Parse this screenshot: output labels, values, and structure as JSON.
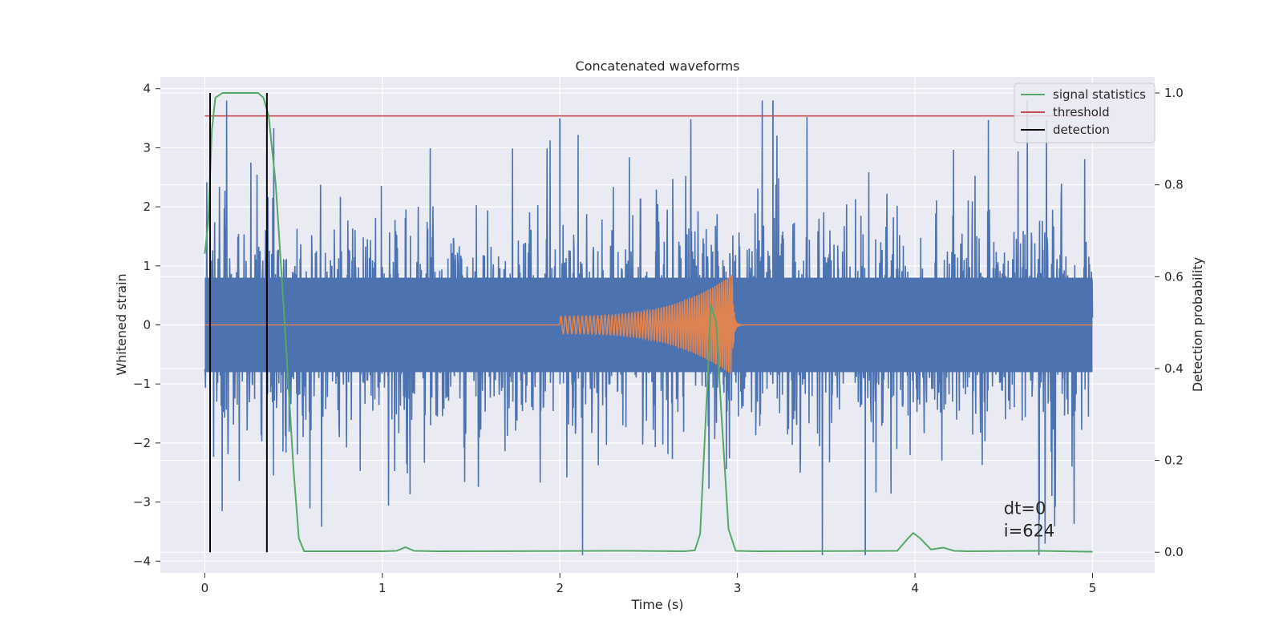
{
  "chart_data": {
    "type": "line",
    "title": "Concatenated waveforms",
    "xlabel": "Time (s)",
    "ylabel": "Whitened strain",
    "y2label": "Detection probability",
    "xlim": [
      -0.25,
      5.35
    ],
    "ylim": [
      -4.2,
      4.2
    ],
    "y2lim": [
      -0.045,
      1.035
    ],
    "xticks": [
      0,
      1,
      2,
      3,
      4,
      5
    ],
    "yticks": [
      -4,
      -3,
      -2,
      -1,
      0,
      1,
      2,
      3,
      4
    ],
    "yticklabels": [
      "−4",
      "−3",
      "−2",
      "−1",
      "0",
      "1",
      "2",
      "3",
      "4"
    ],
    "y2ticks": [
      0.0,
      0.2,
      0.4,
      0.6,
      0.8,
      1.0
    ],
    "y2ticklabels": [
      "0.0",
      "0.2",
      "0.4",
      "0.6",
      "0.8",
      "1.0"
    ],
    "grid": true,
    "legend": {
      "placement": "top-right",
      "entries": [
        {
          "label": "signal statistics",
          "color": "#55a868"
        },
        {
          "label": "threshold",
          "color": "#c44e52"
        },
        {
          "label": "detection",
          "color": "#000000"
        }
      ]
    },
    "annotations": [
      "dt=0",
      "i=624"
    ],
    "annotation_anchor": {
      "x": 4.5,
      "y": -3.2
    },
    "series": [
      {
        "kind": "noise",
        "axis": "left",
        "color": "#4c72b0",
        "x_range": [
          0,
          5
        ],
        "core_band": [
          -0.8,
          0.8
        ],
        "spike_range": [
          -3.9,
          3.8
        ],
        "notable_peaks": [
          {
            "x": 2.0,
            "y": 3.5
          },
          {
            "x": 3.2,
            "y": 3.8
          },
          {
            "x": 3.72,
            "y": -3.9
          },
          {
            "x": 4.7,
            "y": -3.3
          }
        ]
      },
      {
        "kind": "chirp",
        "axis": "left",
        "color": "#dd8452",
        "x_range": [
          0,
          5
        ],
        "chirp_start": 2.0,
        "chirp_end": 2.97,
        "amplitude_start": 0.15,
        "amplitude_peak": 0.85
      },
      {
        "name": "signal statistics",
        "axis": "right",
        "color": "#55a868",
        "x": [
          0.0,
          0.02,
          0.04,
          0.06,
          0.1,
          0.2,
          0.3,
          0.33,
          0.36,
          0.4,
          0.45,
          0.5,
          0.53,
          0.56,
          1.0,
          1.08,
          1.13,
          1.18,
          1.3,
          2.4,
          2.7,
          2.76,
          2.79,
          2.83,
          2.85,
          2.88,
          2.91,
          2.95,
          2.99,
          3.1,
          3.9,
          3.96,
          3.99,
          4.03,
          4.09,
          4.16,
          4.22,
          4.3,
          4.7,
          5.0
        ],
        "y": [
          0.65,
          0.72,
          0.92,
          0.99,
          1.0,
          1.0,
          1.0,
          0.99,
          0.95,
          0.8,
          0.5,
          0.18,
          0.03,
          0.002,
          0.002,
          0.003,
          0.011,
          0.003,
          0.002,
          0.003,
          0.002,
          0.004,
          0.04,
          0.36,
          0.54,
          0.5,
          0.3,
          0.05,
          0.003,
          0.002,
          0.003,
          0.03,
          0.042,
          0.03,
          0.006,
          0.01,
          0.003,
          0.002,
          0.003,
          0.001
        ]
      },
      {
        "name": "threshold",
        "axis": "right",
        "color": "#c44e52",
        "x": [
          0,
          5.1
        ],
        "y": [
          0.95,
          0.95
        ]
      },
      {
        "name": "detection",
        "axis": "right",
        "color": "#000000",
        "kind": "vlines",
        "x": [
          0.03,
          0.35
        ],
        "y_range": [
          0.0,
          1.0
        ]
      }
    ]
  }
}
